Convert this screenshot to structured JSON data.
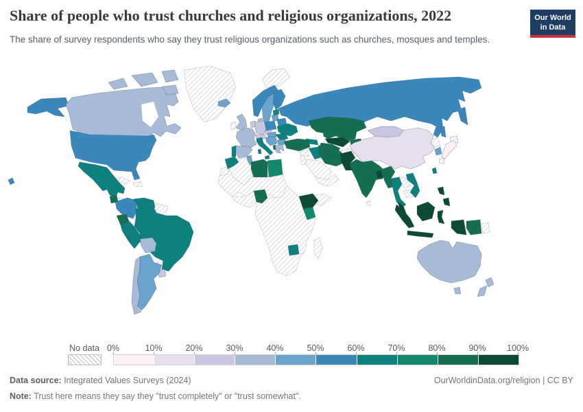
{
  "header": {
    "title": "Share of people who trust churches and religious organizations, 2022",
    "subtitle": "The share of survey respondents who say they trust religious organizations such as churches, mosques and temples."
  },
  "logo": {
    "line1": "Our World",
    "line2": "in Data",
    "bg_color": "#1d3d63",
    "accent_color": "#cf303e"
  },
  "legend": {
    "no_data_label": "No data",
    "tick_labels": [
      "0%",
      "10%",
      "20%",
      "30%",
      "40%",
      "50%",
      "60%",
      "70%",
      "80%",
      "90%",
      "100%"
    ]
  },
  "footer": {
    "data_source_label": "Data source:",
    "data_source_value": " Integrated Values Surveys (2024)",
    "link_text": "OurWorldinData.org/religion | CC BY",
    "note_label": "Note:",
    "note_value": " Trust here means they say they \"trust completely\" or \"trust somewhat\"."
  },
  "chart_data": {
    "type": "heatmap",
    "subtype": "choropleth-world-map",
    "title": "Share of people who trust churches and religious organizations, 2022",
    "unit": "%",
    "value_range": [
      0,
      100
    ],
    "legend_position": "bottom",
    "color_scale": {
      "thresholds": [
        0,
        10,
        20,
        30,
        40,
        50,
        60,
        70,
        80,
        90,
        100
      ],
      "colors": [
        "#fdf1f7",
        "#e7deee",
        "#c9c6e1",
        "#a7bbd9",
        "#6ba3cd",
        "#3a87bb",
        "#0c8180",
        "#12896c",
        "#156e52",
        "#0d4a35"
      ],
      "no_data_style": "hatched"
    },
    "countries": [
      {
        "name": "Canada",
        "value": 35
      },
      {
        "name": "United States",
        "value": 55
      },
      {
        "name": "Mexico",
        "value": 65
      },
      {
        "name": "Guatemala",
        "value": 85
      },
      {
        "name": "Nicaragua",
        "value": 85
      },
      {
        "name": "Colombia",
        "value": 55
      },
      {
        "name": "Venezuela",
        "value": 65
      },
      {
        "name": "Ecuador",
        "value": 85
      },
      {
        "name": "Peru",
        "value": 65
      },
      {
        "name": "Brazil",
        "value": 65
      },
      {
        "name": "Bolivia",
        "value": 35
      },
      {
        "name": "Chile",
        "value": 35
      },
      {
        "name": "Argentina",
        "value": 45
      },
      {
        "name": "Uruguay",
        "value": 25
      },
      {
        "name": "Iceland",
        "value": 45
      },
      {
        "name": "United Kingdom",
        "value": 35
      },
      {
        "name": "France",
        "value": 35
      },
      {
        "name": "Portugal",
        "value": 65
      },
      {
        "name": "Spain",
        "value": 35
      },
      {
        "name": "Netherlands",
        "value": 25
      },
      {
        "name": "Germany",
        "value": 25
      },
      {
        "name": "Denmark",
        "value": 35
      },
      {
        "name": "Norway",
        "value": 55
      },
      {
        "name": "Sweden",
        "value": 45
      },
      {
        "name": "Finland",
        "value": 55
      },
      {
        "name": "Estonia",
        "value": 65
      },
      {
        "name": "Lithuania",
        "value": 45
      },
      {
        "name": "Poland",
        "value": 55
      },
      {
        "name": "Czechia",
        "value": 25
      },
      {
        "name": "Austria",
        "value": 25
      },
      {
        "name": "Hungary",
        "value": 45
      },
      {
        "name": "Serbia",
        "value": 45
      },
      {
        "name": "Albania",
        "value": 85
      },
      {
        "name": "Romania",
        "value": 65
      },
      {
        "name": "Bulgaria",
        "value": 45
      },
      {
        "name": "Greece",
        "value": 35
      },
      {
        "name": "Italy",
        "value": 65
      },
      {
        "name": "Belarus",
        "value": 55
      },
      {
        "name": "Ukraine",
        "value": 65
      },
      {
        "name": "Russia",
        "value": 55
      },
      {
        "name": "Turkey",
        "value": 85
      },
      {
        "name": "Georgia",
        "value": 65
      },
      {
        "name": "Kazakhstan",
        "value": 85
      },
      {
        "name": "Uzbekistan",
        "value": 95
      },
      {
        "name": "Turkmenistan",
        "value": 85
      },
      {
        "name": "Kyrgyzstan",
        "value": 85
      },
      {
        "name": "China",
        "value": 15
      },
      {
        "name": "Mongolia",
        "value": 25
      },
      {
        "name": "Japan",
        "value": 5
      },
      {
        "name": "South Korea",
        "value": 45
      },
      {
        "name": "Taiwan",
        "value": 65
      },
      {
        "name": "India",
        "value": 85
      },
      {
        "name": "Pakistan",
        "value": 95
      },
      {
        "name": "Bangladesh",
        "value": 95
      },
      {
        "name": "Myanmar",
        "value": 85
      },
      {
        "name": "Thailand",
        "value": 65
      },
      {
        "name": "Vietnam",
        "value": 65
      },
      {
        "name": "Malaysia",
        "value": 95
      },
      {
        "name": "Indonesia",
        "value": 95
      },
      {
        "name": "Philippines",
        "value": 95
      },
      {
        "name": "Papua New Guinea",
        "value": 85
      },
      {
        "name": "Australia",
        "value": 35
      },
      {
        "name": "New Zealand",
        "value": 35
      },
      {
        "name": "Iran",
        "value": 85
      },
      {
        "name": "Iraq",
        "value": 65
      },
      {
        "name": "Egypt",
        "value": 75
      },
      {
        "name": "Libya",
        "value": 85
      },
      {
        "name": "Tunisia",
        "value": 45
      },
      {
        "name": "Morocco",
        "value": 65
      },
      {
        "name": "Nigeria",
        "value": 85
      },
      {
        "name": "Ethiopia",
        "value": 95
      },
      {
        "name": "Kenya",
        "value": 75
      },
      {
        "name": "Zimbabwe",
        "value": 65
      }
    ],
    "no_data_countries": [
      "Greenland",
      "Svalbard",
      "Ireland",
      "Algeria",
      "Western Sahara",
      "Mauritania",
      "Mali",
      "Niger",
      "Chad",
      "Sudan",
      "South Sudan",
      "Somalia",
      "Democratic Republic of Congo",
      "Angola",
      "Zambia",
      "Mozambique",
      "South Africa",
      "Madagascar",
      "Saudi Arabia",
      "Syria",
      "Jordan",
      "Israel",
      "Yemen",
      "Oman",
      "Afghanistan",
      "North Korea",
      "Laos",
      "Cambodia",
      "Sri Lanka",
      "Paraguay",
      "Cuba",
      "Haiti",
      "Honduras",
      "Costa Rica",
      "Panama",
      "Guyana",
      "Suriname"
    ]
  }
}
